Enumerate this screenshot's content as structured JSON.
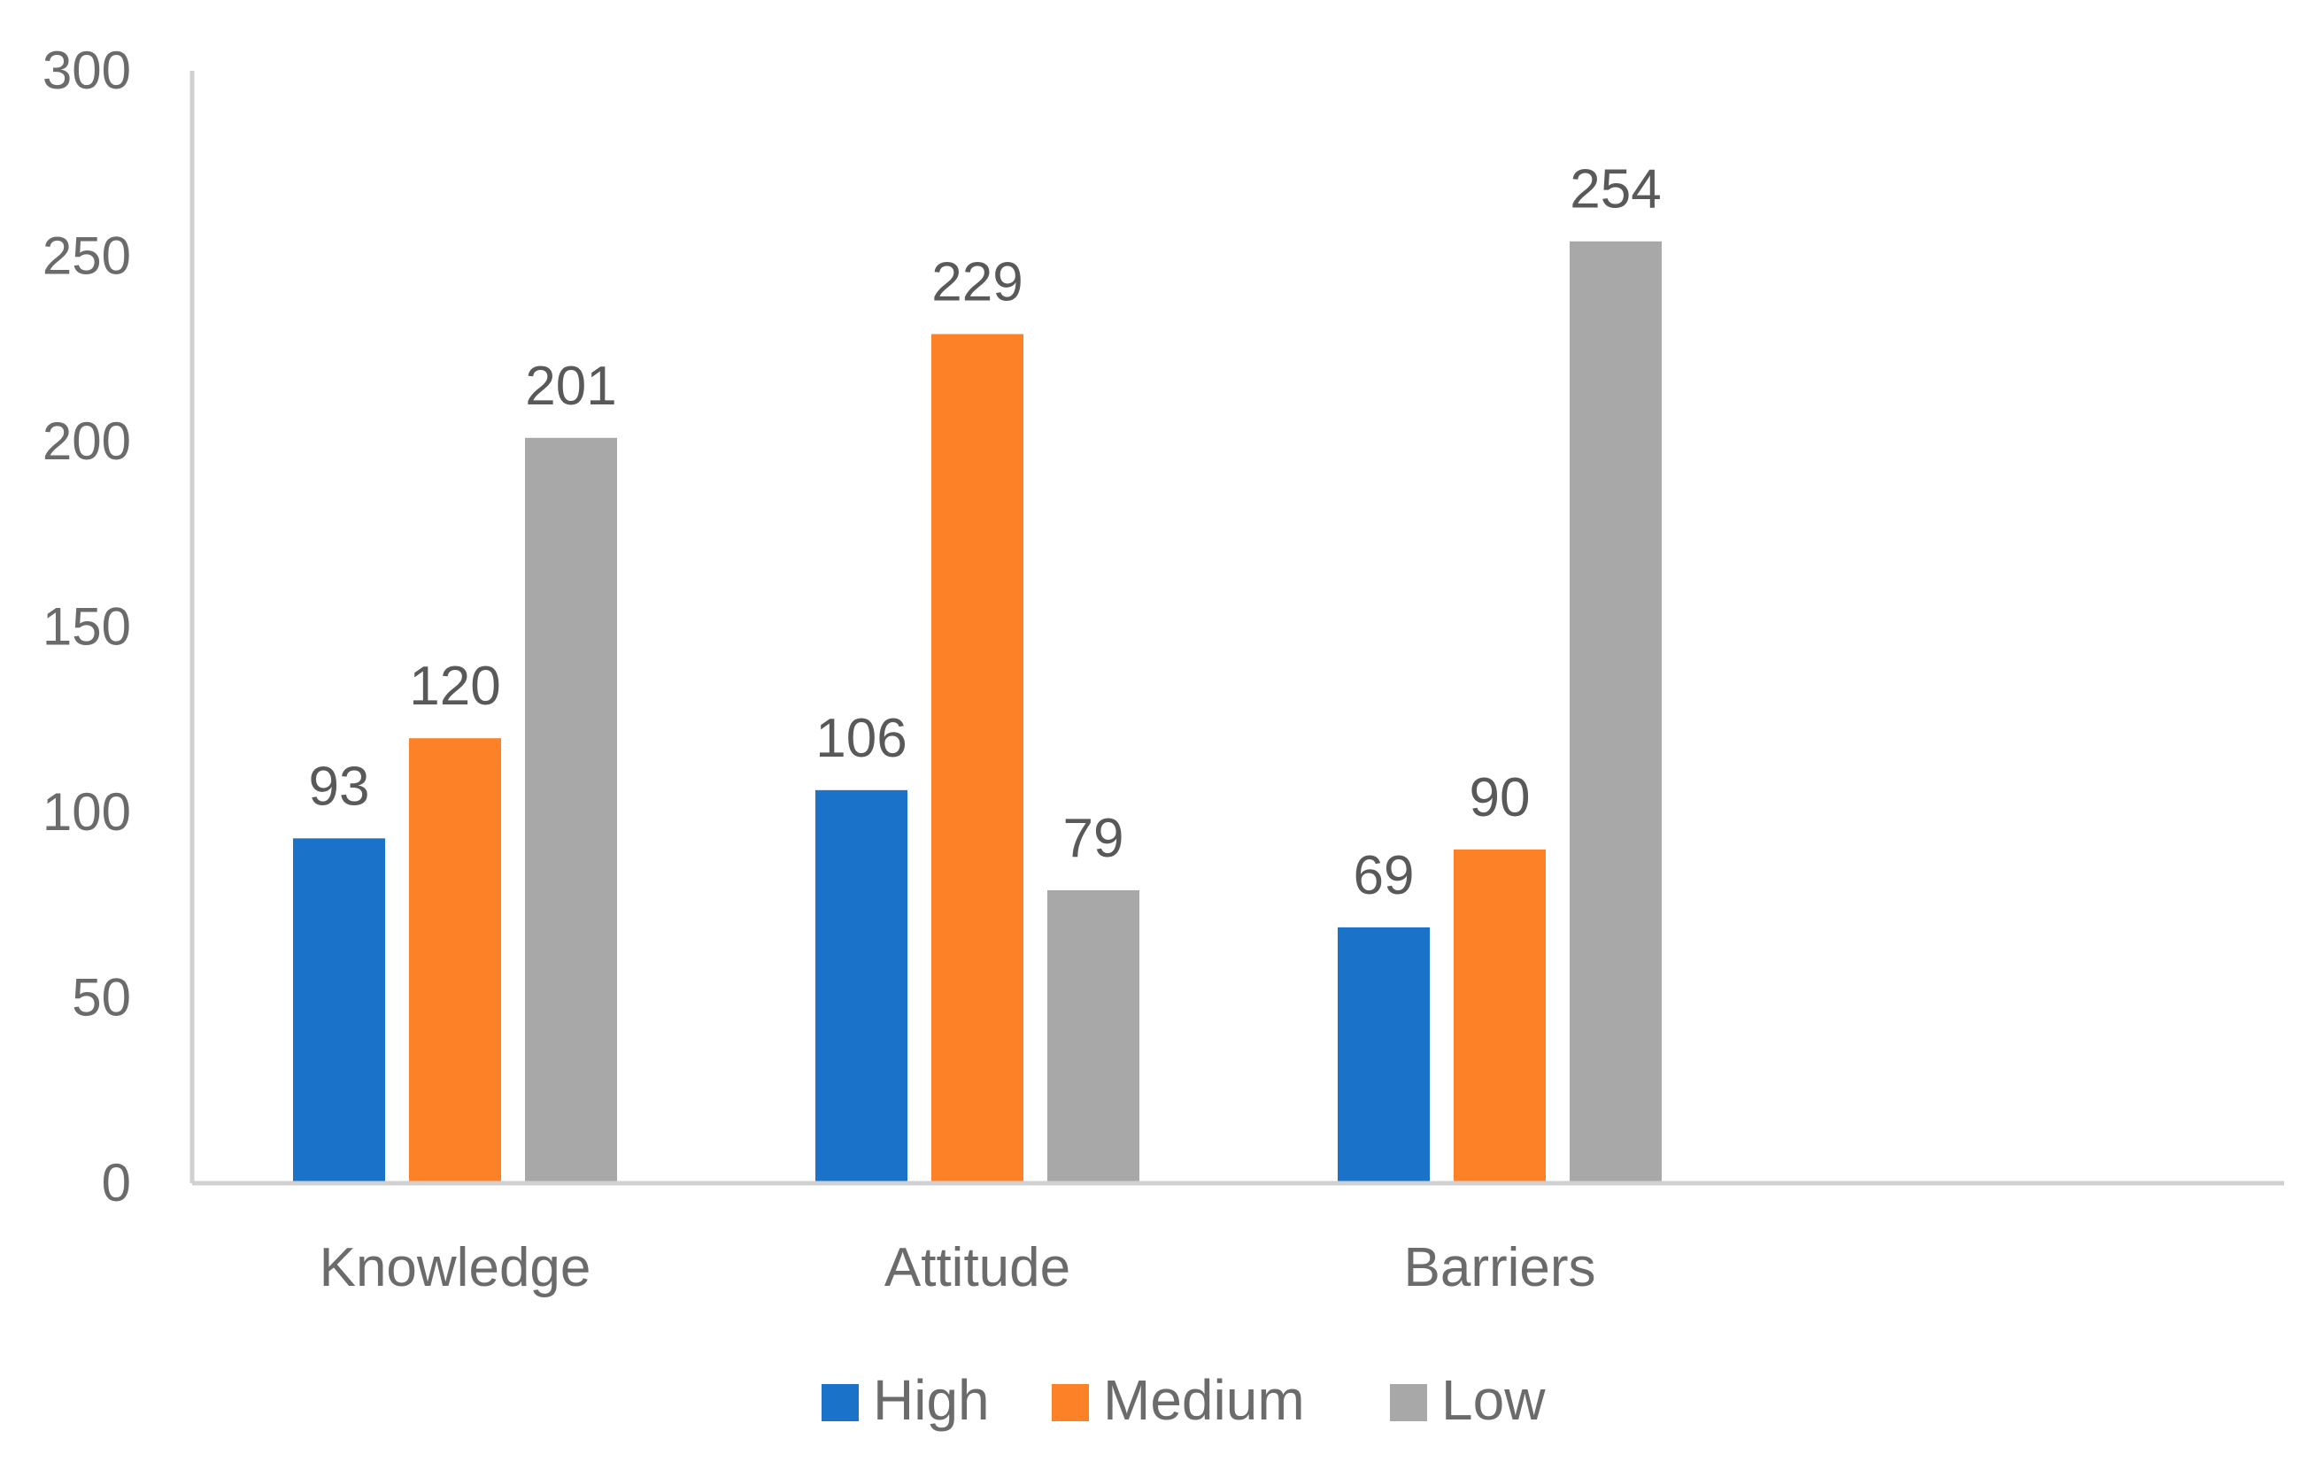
{
  "chart_data": {
    "type": "bar",
    "title": "",
    "xlabel": "",
    "ylabel": "",
    "categories": [
      "Knowledge",
      "Attitude",
      "Barriers"
    ],
    "series": [
      {
        "name": "High",
        "values": [
          93,
          106,
          69
        ],
        "color": "#1a73c8"
      },
      {
        "name": "Medium",
        "values": [
          120,
          229,
          90
        ],
        "color": "#fd8127"
      },
      {
        "name": "Low",
        "values": [
          201,
          79,
          254
        ],
        "color": "#a8a8a8"
      }
    ],
    "ylim": [
      0,
      300
    ],
    "yticks": [
      "0",
      "50",
      "100",
      "150",
      "200",
      "250",
      "300"
    ],
    "grid": false,
    "legend_position": "bottom",
    "data_labels": true
  }
}
